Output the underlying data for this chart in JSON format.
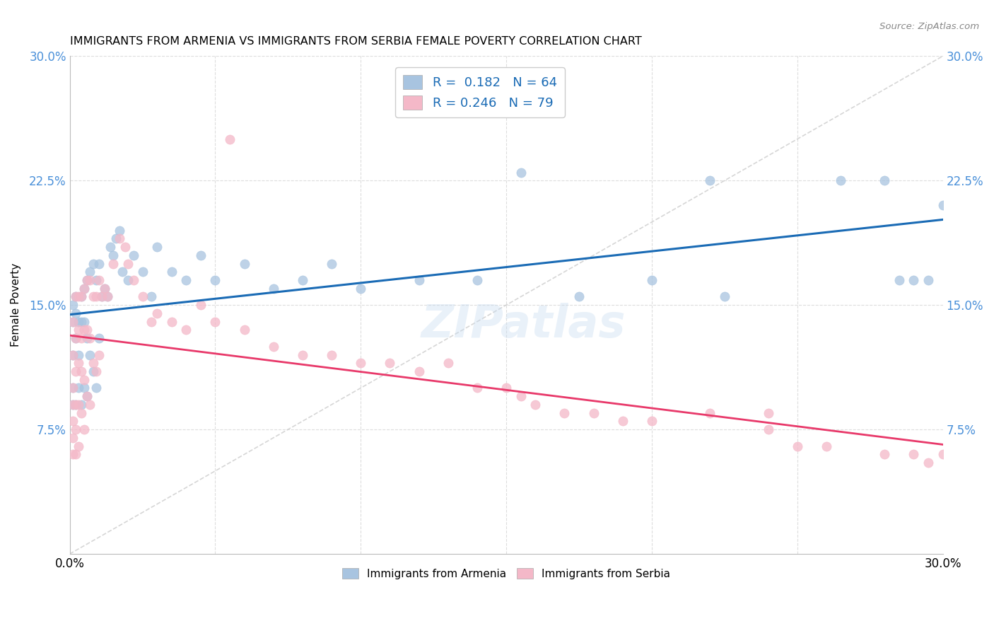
{
  "title": "IMMIGRANTS FROM ARMENIA VS IMMIGRANTS FROM SERBIA FEMALE POVERTY CORRELATION CHART",
  "source": "Source: ZipAtlas.com",
  "ylabel": "Female Poverty",
  "xlim": [
    0.0,
    0.3
  ],
  "ylim": [
    0.0,
    0.3
  ],
  "yticks": [
    0.0,
    0.075,
    0.15,
    0.225,
    0.3
  ],
  "xticks": [
    0.0,
    0.05,
    0.1,
    0.15,
    0.2,
    0.25,
    0.3
  ],
  "ytick_labels_left": [
    "",
    "7.5%",
    "15.0%",
    "22.5%",
    "30.0%"
  ],
  "ytick_labels_right": [
    "",
    "7.5%",
    "15.0%",
    "22.5%",
    "30.0%"
  ],
  "xtick_labels": [
    "0.0%",
    "",
    "",
    "",
    "",
    "",
    "30.0%"
  ],
  "color_armenia": "#A8C4E0",
  "color_serbia": "#F4B8C8",
  "line_color_armenia": "#1A6BB5",
  "line_color_serbia": "#E8396A",
  "diagonal_color": "#CCCCCC",
  "background_color": "#FFFFFF",
  "grid_color": "#DDDDDD",
  "watermark": "ZIPatlas",
  "tick_color": "#4A90D9",
  "armenia_x": [
    0.001,
    0.001,
    0.001,
    0.001,
    0.001,
    0.002,
    0.002,
    0.002,
    0.002,
    0.003,
    0.003,
    0.003,
    0.004,
    0.004,
    0.004,
    0.005,
    0.005,
    0.005,
    0.006,
    0.006,
    0.006,
    0.007,
    0.007,
    0.008,
    0.008,
    0.009,
    0.009,
    0.01,
    0.01,
    0.011,
    0.012,
    0.013,
    0.014,
    0.015,
    0.016,
    0.017,
    0.018,
    0.02,
    0.022,
    0.025,
    0.028,
    0.03,
    0.035,
    0.04,
    0.045,
    0.05,
    0.06,
    0.07,
    0.08,
    0.09,
    0.1,
    0.12,
    0.14,
    0.155,
    0.175,
    0.2,
    0.22,
    0.225,
    0.265,
    0.28,
    0.285,
    0.29,
    0.295,
    0.3
  ],
  "armenia_y": [
    0.14,
    0.15,
    0.12,
    0.1,
    0.09,
    0.155,
    0.145,
    0.13,
    0.09,
    0.14,
    0.12,
    0.1,
    0.155,
    0.14,
    0.09,
    0.16,
    0.14,
    0.1,
    0.165,
    0.13,
    0.095,
    0.17,
    0.12,
    0.175,
    0.11,
    0.165,
    0.1,
    0.175,
    0.13,
    0.155,
    0.16,
    0.155,
    0.185,
    0.18,
    0.19,
    0.195,
    0.17,
    0.165,
    0.18,
    0.17,
    0.155,
    0.185,
    0.17,
    0.165,
    0.18,
    0.165,
    0.175,
    0.16,
    0.165,
    0.175,
    0.16,
    0.165,
    0.165,
    0.23,
    0.155,
    0.165,
    0.225,
    0.155,
    0.225,
    0.225,
    0.165,
    0.165,
    0.165,
    0.21
  ],
  "serbia_x": [
    0.001,
    0.001,
    0.001,
    0.001,
    0.001,
    0.001,
    0.001,
    0.002,
    0.002,
    0.002,
    0.002,
    0.002,
    0.002,
    0.003,
    0.003,
    0.003,
    0.003,
    0.003,
    0.004,
    0.004,
    0.004,
    0.004,
    0.005,
    0.005,
    0.005,
    0.005,
    0.006,
    0.006,
    0.006,
    0.007,
    0.007,
    0.007,
    0.008,
    0.008,
    0.009,
    0.009,
    0.01,
    0.01,
    0.011,
    0.012,
    0.013,
    0.015,
    0.017,
    0.019,
    0.02,
    0.022,
    0.025,
    0.028,
    0.03,
    0.035,
    0.04,
    0.045,
    0.05,
    0.055,
    0.06,
    0.07,
    0.08,
    0.09,
    0.1,
    0.11,
    0.12,
    0.13,
    0.14,
    0.15,
    0.155,
    0.16,
    0.17,
    0.18,
    0.19,
    0.2,
    0.22,
    0.24,
    0.24,
    0.25,
    0.26,
    0.28,
    0.29,
    0.295,
    0.3
  ],
  "serbia_y": [
    0.14,
    0.12,
    0.1,
    0.09,
    0.08,
    0.07,
    0.06,
    0.155,
    0.13,
    0.11,
    0.09,
    0.075,
    0.06,
    0.155,
    0.135,
    0.115,
    0.09,
    0.065,
    0.155,
    0.13,
    0.11,
    0.085,
    0.16,
    0.135,
    0.105,
    0.075,
    0.165,
    0.135,
    0.095,
    0.165,
    0.13,
    0.09,
    0.155,
    0.115,
    0.155,
    0.11,
    0.165,
    0.12,
    0.155,
    0.16,
    0.155,
    0.175,
    0.19,
    0.185,
    0.175,
    0.165,
    0.155,
    0.14,
    0.145,
    0.14,
    0.135,
    0.15,
    0.14,
    0.25,
    0.135,
    0.125,
    0.12,
    0.12,
    0.115,
    0.115,
    0.11,
    0.115,
    0.1,
    0.1,
    0.095,
    0.09,
    0.085,
    0.085,
    0.08,
    0.08,
    0.085,
    0.085,
    0.075,
    0.065,
    0.065,
    0.06,
    0.06,
    0.055,
    0.06
  ]
}
